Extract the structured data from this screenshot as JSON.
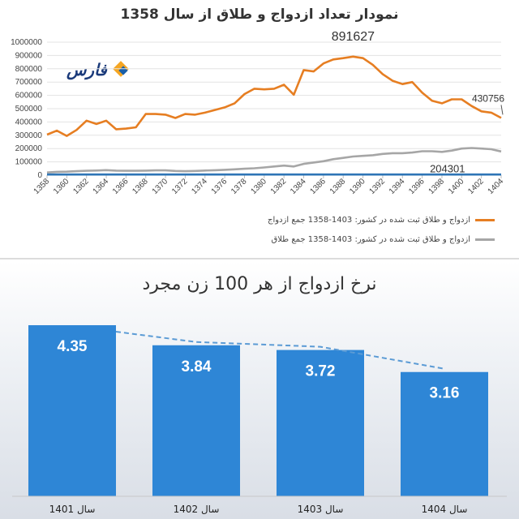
{
  "chart_data": [
    {
      "type": "line",
      "title": "نمودار تعداد  ازدواج و طلاق از سال 1358",
      "x": [
        1358,
        1359,
        1360,
        1361,
        1362,
        1363,
        1364,
        1365,
        1366,
        1367,
        1368,
        1369,
        1370,
        1371,
        1372,
        1373,
        1374,
        1375,
        1376,
        1377,
        1378,
        1379,
        1380,
        1381,
        1382,
        1383,
        1384,
        1385,
        1386,
        1387,
        1388,
        1389,
        1390,
        1391,
        1392,
        1393,
        1394,
        1395,
        1396,
        1397,
        1398,
        1399,
        1400,
        1401,
        1402,
        1403,
        1404
      ],
      "x_tick_labels": [
        "1358",
        "1360",
        "1362",
        "1364",
        "1366",
        "1368",
        "1370",
        "1372",
        "1374",
        "1376",
        "1378",
        "1380",
        "1382",
        "1384",
        "1386",
        "1388",
        "1390",
        "1392",
        "1394",
        "1396",
        "1398",
        "1400",
        "1402",
        "1404"
      ],
      "ylim": [
        0,
        1000000
      ],
      "y_tick_labels": [
        "0",
        "100000",
        "200000",
        "300000",
        "400000",
        "500000",
        "600000",
        "700000",
        "800000",
        "900000",
        "1000000"
      ],
      "grid": true,
      "legend_position": "bottom",
      "series": [
        {
          "name": "ازدواج و طلاق ثبت شده در کشور: 1403-1358 جمع ازدواج",
          "color": "#e67e22",
          "values": [
            305000,
            335000,
            295000,
            340000,
            410000,
            385000,
            410000,
            345000,
            350000,
            360000,
            460000,
            460000,
            455000,
            430000,
            460000,
            455000,
            470000,
            490000,
            510000,
            540000,
            610000,
            650000,
            645000,
            650000,
            680000,
            605000,
            790000,
            780000,
            840000,
            870000,
            880000,
            891627,
            880000,
            830000,
            760000,
            710000,
            685000,
            700000,
            620000,
            560000,
            540000,
            570000,
            570000,
            520000,
            480000,
            470000,
            430756
          ]
        },
        {
          "name": "ازدواج و طلاق ثبت شده در کشور: 1403-1358 جمع طلاق",
          "color": "#a6a6a6",
          "values": [
            20000,
            25000,
            26000,
            30000,
            33000,
            35000,
            38000,
            34000,
            33000,
            33000,
            34000,
            36000,
            36000,
            32000,
            30000,
            32000,
            35000,
            37000,
            40000,
            44000,
            48000,
            52000,
            58000,
            65000,
            72000,
            65000,
            85000,
            95000,
            105000,
            120000,
            130000,
            140000,
            145000,
            150000,
            160000,
            165000,
            165000,
            170000,
            180000,
            180000,
            175000,
            185000,
            200000,
            204301,
            200000,
            195000,
            178000
          ]
        },
        {
          "name": "",
          "color": "#2e75b6",
          "values": [
            5000,
            5000,
            5000,
            5000,
            5000,
            5000,
            5000,
            5000,
            5000,
            5000,
            5000,
            5000,
            5000,
            5000,
            5000,
            5000,
            5000,
            5000,
            5000,
            5000,
            5000,
            5000,
            5000,
            5000,
            5000,
            5000,
            5000,
            5000,
            5000,
            5000,
            5000,
            5000,
            5000,
            5000,
            5000,
            5000,
            5000,
            5000,
            5000,
            5000,
            5000,
            5000,
            5000,
            5000,
            5000,
            5000,
            5000
          ]
        }
      ],
      "annotations": [
        {
          "text": "891627",
          "x": 1389,
          "y": 891627
        },
        {
          "text": "430756",
          "x": 1404,
          "y": 430756
        },
        {
          "text": "204301",
          "x": 1401,
          "y": 204301
        }
      ]
    },
    {
      "type": "bar",
      "title": "نرخ ازدواج از هر 100 زن مجرد",
      "categories": [
        "سال 1401",
        "سال 1402",
        "سال 1403",
        "سال 1404"
      ],
      "values": [
        4.35,
        3.84,
        3.72,
        3.16
      ],
      "value_labels": [
        "4.35",
        "3.84",
        "3.72",
        "3.16"
      ],
      "bar_color": "#2e86d6",
      "trend_line": "dashed",
      "trend_color": "#5b9bd5"
    }
  ],
  "logo": {
    "text": "فارس"
  }
}
